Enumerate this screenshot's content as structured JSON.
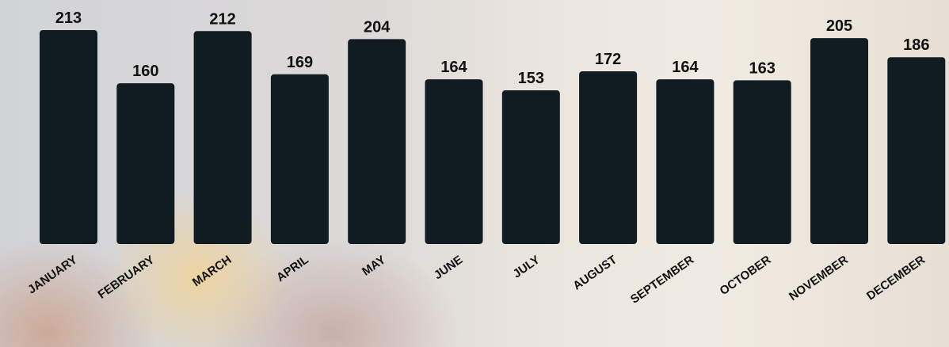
{
  "chart_data": {
    "type": "bar",
    "categories": [
      "JANUARY",
      "FEBRUARY",
      "MARCH",
      "APRIL",
      "MAY",
      "JUNE",
      "JULY",
      "AUGUST",
      "SEPTEMBER",
      "OCTOBER",
      "NOVEMBER",
      "DECEMBER"
    ],
    "values": [
      213,
      160,
      212,
      169,
      204,
      164,
      153,
      172,
      164,
      163,
      205,
      186
    ],
    "color": "#111c22"
  }
}
